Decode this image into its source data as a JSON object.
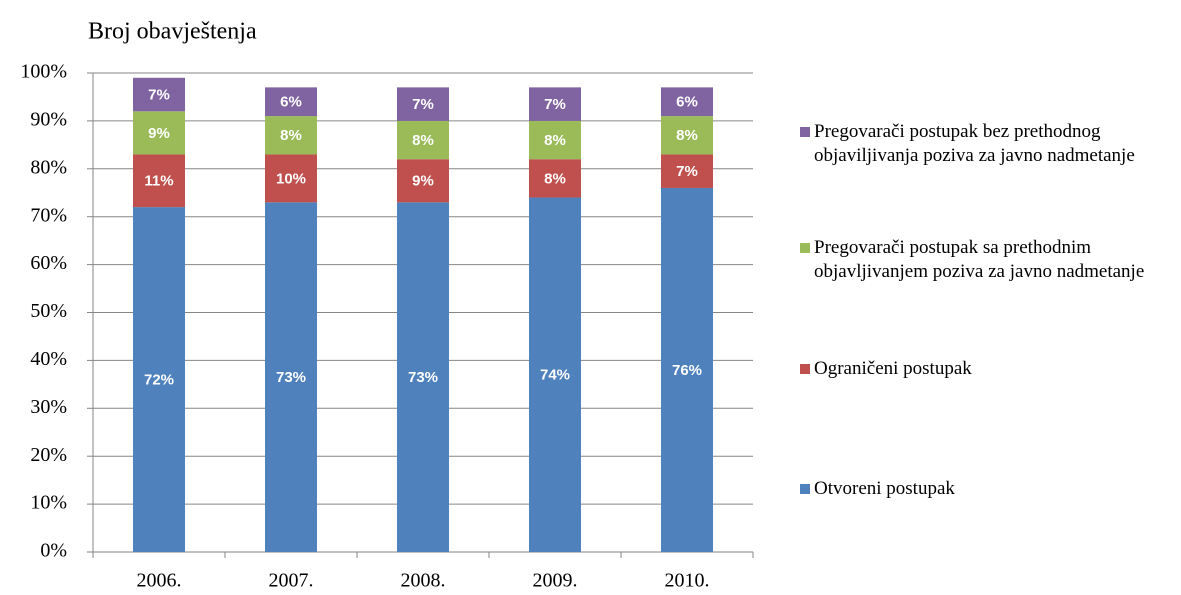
{
  "chart_data": {
    "type": "stacked_bar",
    "title": "Broj obavještenja",
    "categories": [
      "2006.",
      "2007.",
      "2008.",
      "2009.",
      "2010."
    ],
    "series": [
      {
        "name": "Otvoreni postupak",
        "color": "#4f81bd",
        "values": [
          72,
          73,
          73,
          74,
          76
        ],
        "value_labels": [
          "72%",
          "73%",
          "73%",
          "74%",
          "76%"
        ]
      },
      {
        "name": "Ograničeni postupak",
        "color": "#c0504d",
        "values": [
          11,
          10,
          9,
          8,
          7
        ],
        "value_labels": [
          "11%",
          "10%",
          "9%",
          "8%",
          "7%"
        ]
      },
      {
        "name": "Pregovarači postupak sa prethodnim objavljivanjem poziva za javno nadmetanje",
        "color": "#9bbb59",
        "values": [
          9,
          8,
          8,
          8,
          8
        ],
        "value_labels": [
          "9%",
          "8%",
          "8%",
          "8%",
          "8%"
        ]
      },
      {
        "name": "Pregovarači postupak bez prethodnog objaviljivanja poziva za javno nadmetanje",
        "color": "#8064a2",
        "values": [
          7,
          6,
          7,
          7,
          6
        ],
        "value_labels": [
          "7%",
          "6%",
          "7%",
          "7%",
          "6%"
        ]
      }
    ],
    "ylim": [
      0,
      100
    ],
    "yticks": [
      {
        "value": 0,
        "label": "0%"
      },
      {
        "value": 10,
        "label": "10%"
      },
      {
        "value": 20,
        "label": "20%"
      },
      {
        "value": 30,
        "label": "30%"
      },
      {
        "value": 40,
        "label": "40%"
      },
      {
        "value": 50,
        "label": "50%"
      },
      {
        "value": 60,
        "label": "60%"
      },
      {
        "value": 70,
        "label": "70%"
      },
      {
        "value": 80,
        "label": "80%"
      },
      {
        "value": 90,
        "label": "90%"
      },
      {
        "value": 100,
        "label": "100%"
      }
    ],
    "grid": true,
    "legend": "right"
  }
}
